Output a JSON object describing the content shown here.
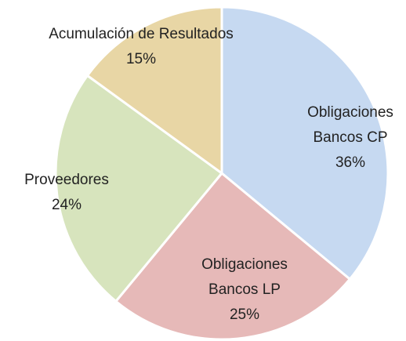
{
  "chart_data": {
    "type": "pie",
    "categories": [
      "Obligaciones Bancos CP",
      "Obligaciones Bancos LP",
      "Proveedores",
      "Acumulación de Resultados"
    ],
    "values": [
      36,
      25,
      24,
      15
    ],
    "value_labels": [
      "36%",
      "25%",
      "24%",
      "15%"
    ],
    "colors": [
      "#c6d9f1",
      "#e6b9b8",
      "#d7e4bd",
      "#e8d6a5"
    ]
  }
}
